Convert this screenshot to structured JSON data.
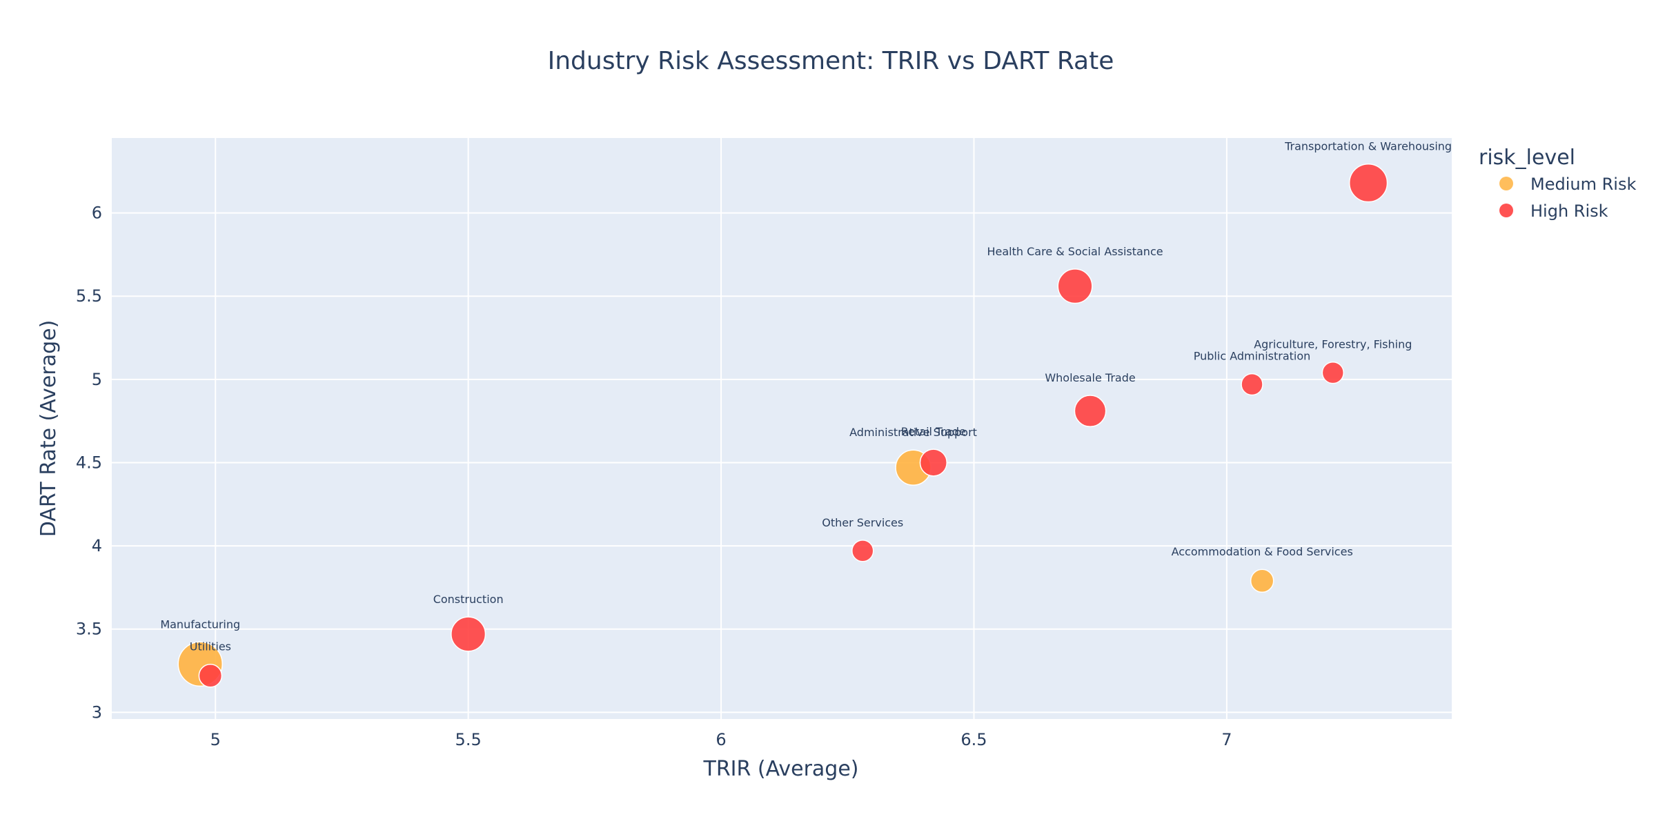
{
  "chart_data": {
    "type": "scatter",
    "title": "Industry Risk Assessment: TRIR vs DART Rate",
    "xlabel": "TRIR (Average)",
    "ylabel": "DART Rate (Average)",
    "xlim": [
      4.795,
      7.445
    ],
    "ylim": [
      2.96,
      6.45
    ],
    "x_ticks": [
      5,
      5.5,
      6,
      6.5,
      7
    ],
    "x_tick_labels": [
      "5",
      "5.5",
      "6",
      "6.5",
      "7"
    ],
    "y_ticks": [
      3,
      3.5,
      4,
      4.5,
      5,
      5.5,
      6
    ],
    "y_tick_labels": [
      "3",
      "3.5",
      "4",
      "4.5",
      "5",
      "5.5",
      "6"
    ],
    "grid": true,
    "legend": {
      "title": "risk_level",
      "placement": "top-right",
      "entries": [
        {
          "name": "Medium Risk",
          "color": "#FFB340"
        },
        {
          "name": "High Risk",
          "color": "#FF4040"
        }
      ]
    },
    "series": [
      {
        "name": "Medium Risk",
        "color": "#FFB340",
        "points": [
          {
            "label": "Manufacturing",
            "x": 4.97,
            "y": 3.29,
            "size": 30
          },
          {
            "label": "Administrative Support",
            "x": 6.38,
            "y": 4.47,
            "size": 19
          },
          {
            "label": "Accommodation & Food Services",
            "x": 7.07,
            "y": 3.79,
            "size": 8
          }
        ]
      },
      {
        "name": "High Risk",
        "color": "#FF4040",
        "points": [
          {
            "label": "Utilities",
            "x": 4.99,
            "y": 3.22,
            "size": 8
          },
          {
            "label": "Construction",
            "x": 5.5,
            "y": 3.47,
            "size": 18
          },
          {
            "label": "Other Services",
            "x": 6.28,
            "y": 3.97,
            "size": 7
          },
          {
            "label": "Retail Trade",
            "x": 6.42,
            "y": 4.5,
            "size": 11
          },
          {
            "label": "Health Care & Social Assistance",
            "x": 6.7,
            "y": 5.56,
            "size": 18
          },
          {
            "label": "Wholesale Trade",
            "x": 6.73,
            "y": 4.81,
            "size": 15
          },
          {
            "label": "Public Administration",
            "x": 7.05,
            "y": 4.97,
            "size": 7
          },
          {
            "label": "Agriculture, Forestry, Fishing",
            "x": 7.21,
            "y": 5.04,
            "size": 7
          },
          {
            "label": "Transportation & Warehousing",
            "x": 7.28,
            "y": 6.18,
            "size": 22
          }
        ]
      }
    ]
  }
}
